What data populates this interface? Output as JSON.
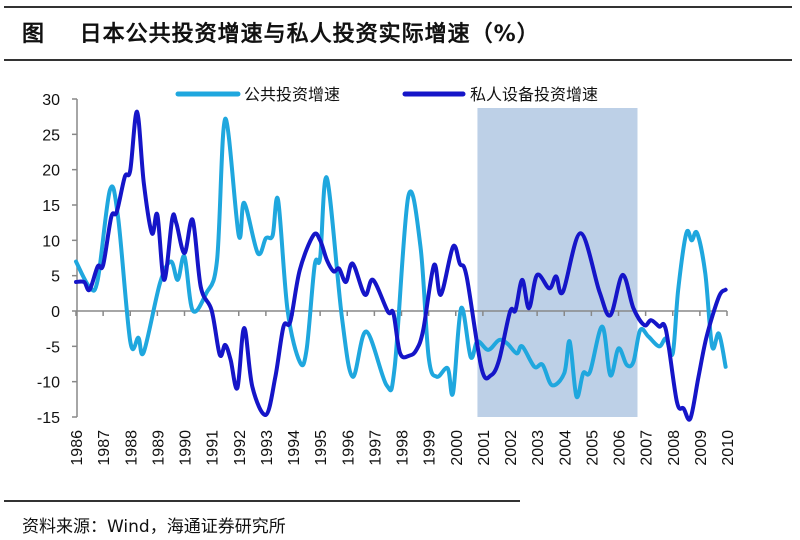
{
  "header": {
    "fig_label": "图",
    "title": "日本公共投资增速与私人投资实际增速（%）"
  },
  "source": "资料来源：Wind，海通证券研究所",
  "colors": {
    "public": "#1fa7de",
    "private": "#1515c8",
    "shade": "#bdd0e7",
    "axis": "#888888"
  },
  "chart_data": {
    "type": "line",
    "title": "日本公共投资增速与私人投资实际增速（%）",
    "xlabel": "",
    "ylabel": "",
    "ylim": [
      -15,
      30
    ],
    "yticks": [
      "30",
      "25",
      "20",
      "15",
      "10",
      "5",
      "0",
      "-5",
      "-10",
      "-15"
    ],
    "xlim": [
      1986,
      2010
    ],
    "xticks": [
      "1986",
      "1987",
      "1988",
      "1989",
      "1990",
      "1991",
      "1992",
      "1993",
      "1994",
      "1995",
      "1996",
      "1997",
      "1998",
      "1999",
      "2000",
      "2001",
      "2002",
      "2003",
      "2004",
      "2005",
      "2006",
      "2007",
      "2008",
      "2009",
      "2010"
    ],
    "legend_position": "top",
    "shaded_period": [
      2000.8,
      2006.7
    ],
    "series": [
      {
        "name": "公共投资增速",
        "color_key": "public",
        "points": [
          [
            1986.0,
            7.0
          ],
          [
            1986.5,
            3.4
          ],
          [
            1986.8,
            4.4
          ],
          [
            1987.25,
            17.1
          ],
          [
            1987.55,
            13.3
          ],
          [
            1988.0,
            -4.3
          ],
          [
            1988.3,
            -3.8
          ],
          [
            1988.5,
            -5.8
          ],
          [
            1989.1,
            4
          ],
          [
            1989.5,
            7
          ],
          [
            1989.75,
            4.4
          ],
          [
            1990.0,
            7.7
          ],
          [
            1990.3,
            0.1
          ],
          [
            1990.8,
            2.5
          ],
          [
            1991.2,
            7.2
          ],
          [
            1991.5,
            27.2
          ],
          [
            1992.0,
            10.7
          ],
          [
            1992.2,
            15.3
          ],
          [
            1992.7,
            8.2
          ],
          [
            1993.0,
            10.3
          ],
          [
            1993.25,
            10.7
          ],
          [
            1993.45,
            15.7
          ],
          [
            1993.8,
            0.1
          ],
          [
            1994.25,
            -7.2
          ],
          [
            1994.5,
            -5.5
          ],
          [
            1994.8,
            6.5
          ],
          [
            1995.0,
            7.5
          ],
          [
            1995.25,
            18.8
          ],
          [
            1995.8,
            -0.8
          ],
          [
            1996.2,
            -9.3
          ],
          [
            1996.7,
            -2.9
          ],
          [
            1997.45,
            -10.5
          ],
          [
            1997.75,
            -7.9
          ],
          [
            1998.25,
            16.2
          ],
          [
            1998.7,
            9.1
          ],
          [
            1999.0,
            -6.5
          ],
          [
            1999.3,
            -9.3
          ],
          [
            1999.7,
            -8.1
          ],
          [
            1999.9,
            -11.6
          ],
          [
            2000.2,
            0.4
          ],
          [
            2000.55,
            -6.5
          ],
          [
            2000.8,
            -4.3
          ],
          [
            2001.2,
            -5.5
          ],
          [
            2001.6,
            -4.1
          ],
          [
            2001.9,
            -4.6
          ],
          [
            2002.25,
            -6.0
          ],
          [
            2002.45,
            -5.0
          ],
          [
            2002.9,
            -7.9
          ],
          [
            2003.2,
            -7.6
          ],
          [
            2003.55,
            -10.5
          ],
          [
            2004.0,
            -8.8
          ],
          [
            2004.2,
            -4.3
          ],
          [
            2004.45,
            -12.1
          ],
          [
            2004.7,
            -8.8
          ],
          [
            2004.95,
            -8.6
          ],
          [
            2005.4,
            -2.2
          ],
          [
            2005.7,
            -9.1
          ],
          [
            2006.0,
            -5.3
          ],
          [
            2006.3,
            -7.6
          ],
          [
            2006.55,
            -7.2
          ],
          [
            2006.8,
            -2.7
          ],
          [
            2007.1,
            -3.6
          ],
          [
            2007.5,
            -5.0
          ],
          [
            2007.75,
            -3.9
          ],
          [
            2008.0,
            -6.0
          ],
          [
            2008.2,
            3.0
          ],
          [
            2008.5,
            11.0
          ],
          [
            2008.7,
            10.0
          ],
          [
            2008.9,
            11.0
          ],
          [
            2009.2,
            5.3
          ],
          [
            2009.45,
            -5.0
          ],
          [
            2009.7,
            -3.2
          ],
          [
            2009.95,
            -7.9
          ]
        ]
      },
      {
        "name": "私人设备投资增速",
        "color_key": "private",
        "points": [
          [
            1986.0,
            4.1
          ],
          [
            1986.3,
            4.1
          ],
          [
            1986.5,
            3.0
          ],
          [
            1986.8,
            6.3
          ],
          [
            1987.0,
            6.5
          ],
          [
            1987.3,
            13.3
          ],
          [
            1987.5,
            14.0
          ],
          [
            1987.8,
            19.0
          ],
          [
            1988.0,
            19.9
          ],
          [
            1988.25,
            28.2
          ],
          [
            1988.5,
            18.1
          ],
          [
            1988.8,
            11.0
          ],
          [
            1989.0,
            13.6
          ],
          [
            1989.25,
            4.4
          ],
          [
            1989.55,
            13.1
          ],
          [
            1989.7,
            12.4
          ],
          [
            1990.0,
            8.2
          ],
          [
            1990.3,
            12.9
          ],
          [
            1990.6,
            3.4
          ],
          [
            1991.0,
            0.1
          ],
          [
            1991.3,
            -6.2
          ],
          [
            1991.5,
            -4.8
          ],
          [
            1991.7,
            -6.9
          ],
          [
            1991.95,
            -10.9
          ],
          [
            1992.2,
            -2.4
          ],
          [
            1992.5,
            -10.7
          ],
          [
            1993.0,
            -14.7
          ],
          [
            1993.35,
            -9.3
          ],
          [
            1993.65,
            -2.2
          ],
          [
            1993.9,
            -1.5
          ],
          [
            1994.25,
            5.8
          ],
          [
            1994.75,
            10.7
          ],
          [
            1995.0,
            10.0
          ],
          [
            1995.25,
            7.2
          ],
          [
            1995.5,
            5.6
          ],
          [
            1995.7,
            6.0
          ],
          [
            1995.95,
            4.1
          ],
          [
            1996.2,
            6.7
          ],
          [
            1996.65,
            2.3
          ],
          [
            1996.95,
            4.4
          ],
          [
            1997.5,
            -0.1
          ],
          [
            1997.7,
            -0.3
          ],
          [
            1997.95,
            -6.0
          ],
          [
            1998.3,
            -6.3
          ],
          [
            1998.55,
            -5.5
          ],
          [
            1998.8,
            -2.7
          ],
          [
            1999.2,
            6.5
          ],
          [
            1999.45,
            2.3
          ],
          [
            1999.9,
            9.1
          ],
          [
            2000.15,
            6.7
          ],
          [
            2000.4,
            4.9
          ],
          [
            2000.95,
            -8.1
          ],
          [
            2001.3,
            -9.1
          ],
          [
            2001.6,
            -6.9
          ],
          [
            2002.0,
            -0.1
          ],
          [
            2002.2,
            0.1
          ],
          [
            2002.45,
            4.4
          ],
          [
            2002.7,
            0.4
          ],
          [
            2003.0,
            5.1
          ],
          [
            2003.45,
            3.2
          ],
          [
            2003.7,
            4.9
          ],
          [
            2003.95,
            2.7
          ],
          [
            2004.6,
            11.0
          ],
          [
            2005.3,
            2.7
          ],
          [
            2005.7,
            -0.6
          ],
          [
            2006.15,
            5.1
          ],
          [
            2006.55,
            0.4
          ],
          [
            2006.95,
            -2.0
          ],
          [
            2007.2,
            -1.3
          ],
          [
            2007.5,
            -2.2
          ],
          [
            2007.75,
            -2.7
          ],
          [
            2008.15,
            -12.8
          ],
          [
            2008.4,
            -13.8
          ],
          [
            2008.65,
            -15.2
          ],
          [
            2008.95,
            -9.3
          ],
          [
            2009.25,
            -3.6
          ],
          [
            2009.7,
            2.0
          ],
          [
            2009.95,
            3.0
          ]
        ]
      }
    ]
  }
}
